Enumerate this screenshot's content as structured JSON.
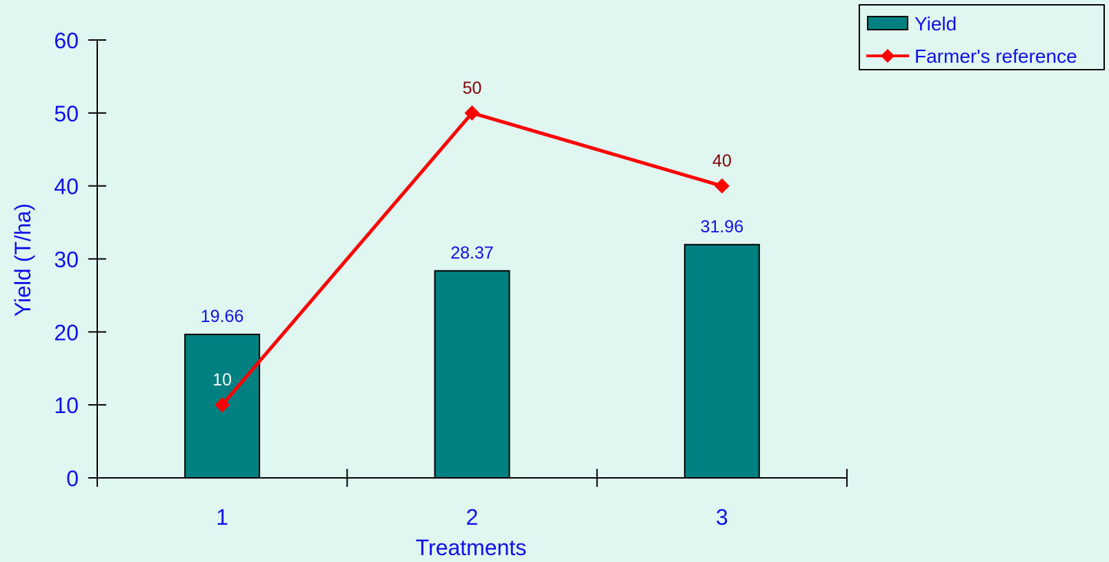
{
  "chart_data": {
    "type": "bar",
    "categories": [
      "1",
      "2",
      "3"
    ],
    "xlabel": "Treatments",
    "ylabel": "Yield (T/ha)",
    "ylim": [
      0,
      60
    ],
    "yticks": [
      "0",
      "10",
      "20",
      "30",
      "40",
      "50",
      "60"
    ],
    "grid": false,
    "legend_position": "top-right",
    "series": [
      {
        "name": "Yield",
        "type": "bar",
        "values": [
          19.66,
          28.37,
          31.96
        ],
        "labels": [
          "19.66",
          "28.37",
          "31.96"
        ],
        "color": "#008080"
      },
      {
        "name": "Farmer's reference",
        "type": "line",
        "marker": "diamond",
        "values": [
          10,
          50,
          40
        ],
        "labels": [
          "10",
          "50",
          "40"
        ],
        "color": "#ff0000",
        "label_colors": [
          "#ffffff",
          "#800000",
          "#800000"
        ]
      }
    ]
  },
  "colors": {
    "background": "#dff6f1",
    "text": "#1010ee",
    "axis": "#000000"
  }
}
